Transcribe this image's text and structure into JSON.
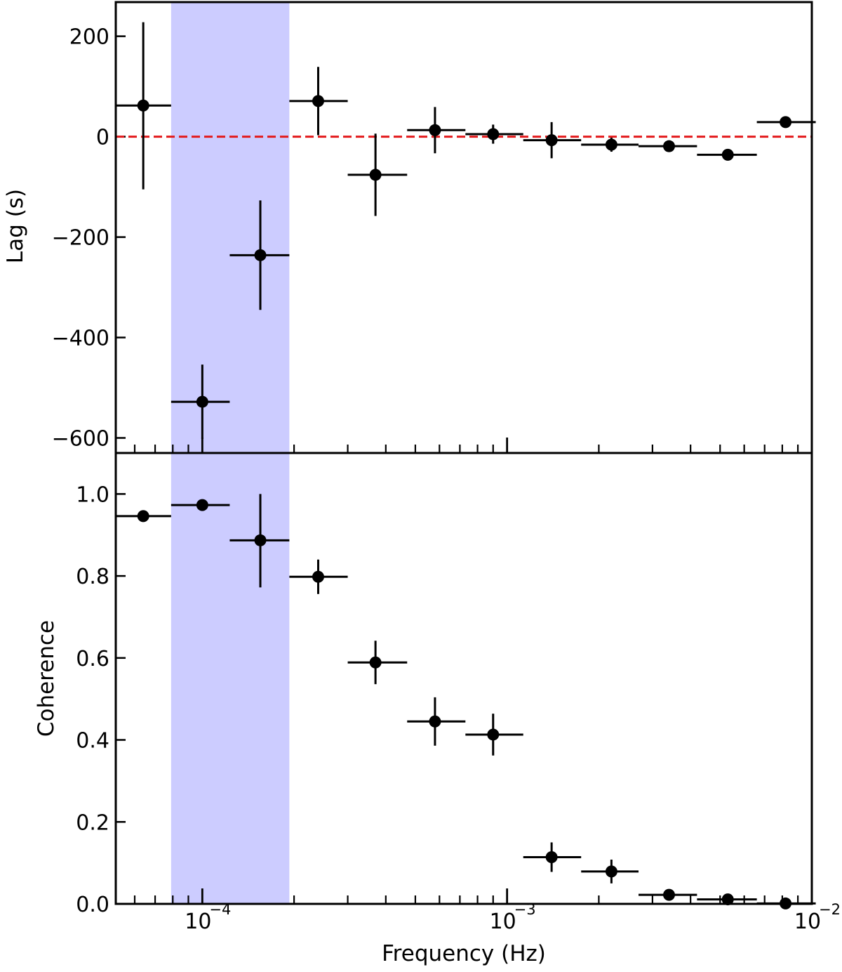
{
  "chart_data": [
    {
      "panel": "top",
      "type": "scatter",
      "ylabel": "Lag (s)",
      "xscale": "log",
      "xlim": [
        5.2e-05,
        0.01
      ],
      "ylim": [
        -630,
        268
      ],
      "yticks": [
        -600,
        -400,
        -200,
        0,
        200
      ],
      "ytick_labels": [
        "−600",
        "−400",
        "−200",
        "0",
        "200"
      ],
      "reference_line": {
        "y": 0,
        "style": "dashed",
        "color": "#e31a1c"
      },
      "marker_color": "#000000",
      "points": [
        {
          "x": 6.4e-05,
          "y": 62,
          "x_low": 5.2e-05,
          "x_high": 7.9e-05,
          "y_low": -105,
          "y_high": 228
        },
        {
          "x": 0.0001,
          "y": -528,
          "x_low": 7.9e-05,
          "x_high": 0.000123,
          "y_low": -602,
          "y_high": -454
        },
        {
          "x": 0.000155,
          "y": -236,
          "x_low": 0.000123,
          "x_high": 0.000193,
          "y_low": -345,
          "y_high": -127
        },
        {
          "x": 0.00024,
          "y": 71,
          "x_low": 0.000193,
          "x_high": 0.0003,
          "y_low": 3,
          "y_high": 139
        },
        {
          "x": 0.00037,
          "y": -76,
          "x_low": 0.0003,
          "x_high": 0.00047,
          "y_low": -158,
          "y_high": 6
        },
        {
          "x": 0.00058,
          "y": 13,
          "x_low": 0.00047,
          "x_high": 0.00073,
          "y_low": -33,
          "y_high": 59
        },
        {
          "x": 0.0009,
          "y": 5,
          "x_low": 0.00073,
          "x_high": 0.00113,
          "y_low": -14,
          "y_high": 24
        },
        {
          "x": 0.0014,
          "y": -7,
          "x_low": 0.00113,
          "x_high": 0.00175,
          "y_low": -43,
          "y_high": 29
        },
        {
          "x": 0.0022,
          "y": -16,
          "x_low": 0.00175,
          "x_high": 0.0027,
          "y_low": -30,
          "y_high": -2
        },
        {
          "x": 0.0034,
          "y": -19,
          "x_low": 0.0027,
          "x_high": 0.0042,
          "y_low": -24,
          "y_high": -14
        },
        {
          "x": 0.0053,
          "y": -36,
          "x_low": 0.0042,
          "x_high": 0.0066,
          "y_low": -40,
          "y_high": -32
        },
        {
          "x": 0.0082,
          "y": 29,
          "x_low": 0.0066,
          "x_high": 0.0103,
          "y_low": 25,
          "y_high": 33
        }
      ]
    },
    {
      "panel": "bottom",
      "type": "scatter",
      "xlabel": "Frequency (Hz)",
      "ylabel": "Coherence",
      "xscale": "log",
      "xlim": [
        5.2e-05,
        0.01
      ],
      "ylim": [
        0,
        1.1
      ],
      "yticks": [
        0,
        0.2,
        0.4,
        0.6,
        0.8,
        1.0
      ],
      "ytick_labels": [
        "0.0",
        "0.2",
        "0.4",
        "0.6",
        "0.8",
        "1.0"
      ],
      "xticks": [
        0.0001,
        0.001,
        0.01
      ],
      "xtick_labels": [
        {
          "base": "10",
          "exp": "−4"
        },
        {
          "base": "10",
          "exp": "−3"
        },
        {
          "base": "10",
          "exp": "−2"
        }
      ],
      "marker_color": "#000000",
      "points": [
        {
          "x": 6.4e-05,
          "y": 0.946,
          "x_low": 5.2e-05,
          "x_high": 7.9e-05,
          "y_low": 0.936,
          "y_high": 0.956
        },
        {
          "x": 0.0001,
          "y": 0.973,
          "x_low": 7.9e-05,
          "x_high": 0.000123,
          "y_low": 0.966,
          "y_high": 0.98
        },
        {
          "x": 0.000155,
          "y": 0.887,
          "x_low": 0.000123,
          "x_high": 0.000193,
          "y_low": 0.772,
          "y_high": 1.0
        },
        {
          "x": 0.00024,
          "y": 0.798,
          "x_low": 0.000193,
          "x_high": 0.0003,
          "y_low": 0.756,
          "y_high": 0.84
        },
        {
          "x": 0.00037,
          "y": 0.589,
          "x_low": 0.0003,
          "x_high": 0.00047,
          "y_low": 0.536,
          "y_high": 0.642
        },
        {
          "x": 0.00058,
          "y": 0.445,
          "x_low": 0.00047,
          "x_high": 0.00073,
          "y_low": 0.386,
          "y_high": 0.504
        },
        {
          "x": 0.0009,
          "y": 0.413,
          "x_low": 0.00073,
          "x_high": 0.00113,
          "y_low": 0.362,
          "y_high": 0.464
        },
        {
          "x": 0.0014,
          "y": 0.114,
          "x_low": 0.00113,
          "x_high": 0.00175,
          "y_low": 0.078,
          "y_high": 0.15
        },
        {
          "x": 0.0022,
          "y": 0.079,
          "x_low": 0.00175,
          "x_high": 0.0027,
          "y_low": 0.05,
          "y_high": 0.108
        },
        {
          "x": 0.0034,
          "y": 0.022,
          "x_low": 0.0027,
          "x_high": 0.0042,
          "y_low": 0.014,
          "y_high": 0.03
        },
        {
          "x": 0.0053,
          "y": 0.011,
          "x_low": 0.0042,
          "x_high": 0.0066,
          "y_low": 0.005,
          "y_high": 0.017
        },
        {
          "x": 0.0082,
          "y": 0.001,
          "x_low": 0.0066,
          "x_high": 0.0103,
          "y_low": 0.0,
          "y_high": 0.004
        }
      ]
    }
  ],
  "highlight_band": {
    "x_low": 7.9e-05,
    "x_high": 0.000193,
    "color": "#ccccff"
  }
}
